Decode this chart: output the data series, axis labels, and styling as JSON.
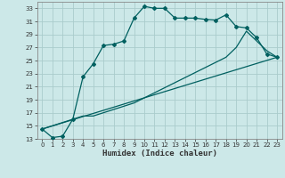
{
  "xlabel": "Humidex (Indice chaleur)",
  "background_color": "#cce8e8",
  "grid_color": "#aacccc",
  "line_color": "#006060",
  "xlim": [
    -0.5,
    23.5
  ],
  "ylim": [
    13,
    34
  ],
  "yticks": [
    13,
    15,
    17,
    19,
    21,
    23,
    25,
    27,
    29,
    31,
    33
  ],
  "xticks": [
    0,
    1,
    2,
    3,
    4,
    5,
    6,
    7,
    8,
    9,
    10,
    11,
    12,
    13,
    14,
    15,
    16,
    17,
    18,
    19,
    20,
    21,
    22,
    23
  ],
  "curve1_x": [
    0,
    1,
    2,
    3,
    4,
    5,
    6,
    7,
    8,
    9,
    10,
    11,
    12,
    13,
    14,
    15,
    16,
    17,
    18,
    19,
    20,
    21,
    22,
    23
  ],
  "curve1_y": [
    14.5,
    13.2,
    13.4,
    16.0,
    22.5,
    24.5,
    27.3,
    27.5,
    28.0,
    31.5,
    33.3,
    33.0,
    33.0,
    31.5,
    31.5,
    31.5,
    31.3,
    31.2,
    32.0,
    30.2,
    30.0,
    28.5,
    26.0,
    25.5
  ],
  "curve2_x": [
    0,
    3,
    4,
    5,
    9,
    18,
    19,
    20,
    22,
    23
  ],
  "curve2_y": [
    14.5,
    16.0,
    16.5,
    16.5,
    18.5,
    25.5,
    27.0,
    29.5,
    26.5,
    25.5
  ],
  "curve3_x": [
    0,
    23
  ],
  "curve3_y": [
    14.5,
    25.5
  ]
}
